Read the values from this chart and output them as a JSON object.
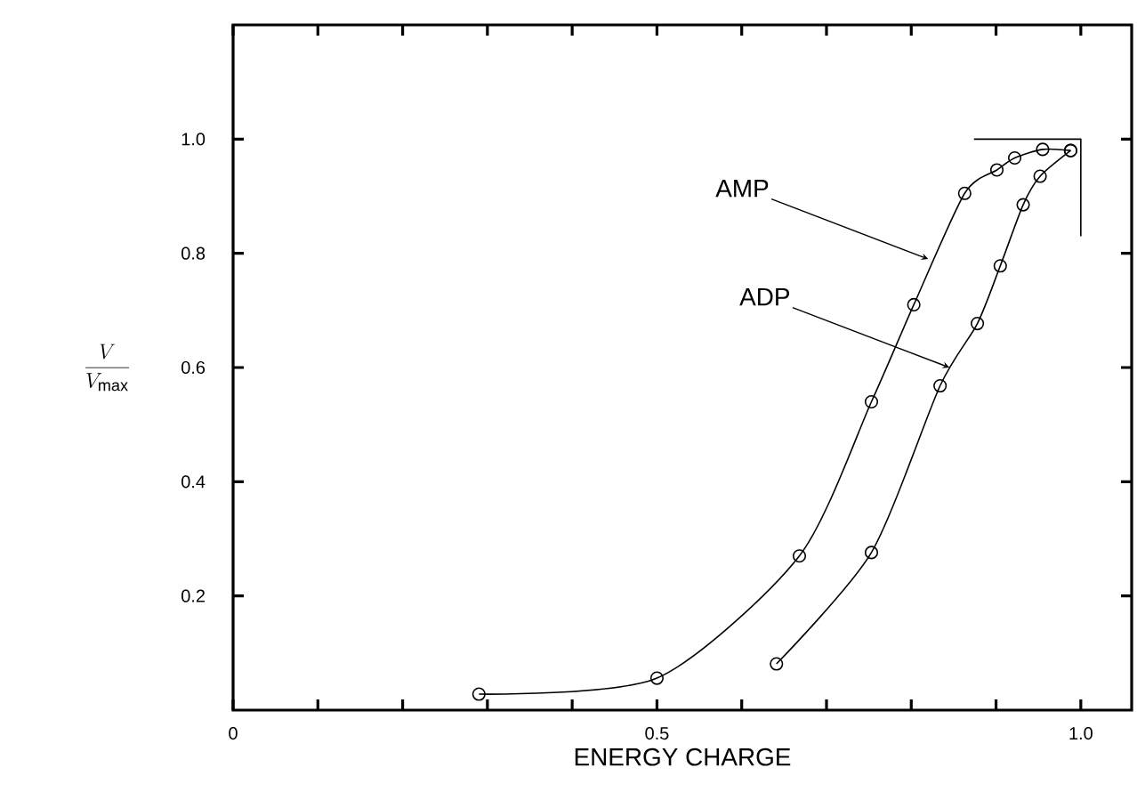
{
  "chart_data": {
    "type": "line",
    "xlabel": "ENERGY CHARGE",
    "ylabel": "\\frac{V}{V_{\\mathrm{max}}}",
    "xlim": [
      0,
      1.06
    ],
    "ylim": [
      0,
      1.2
    ],
    "xticks": [
      0,
      {
        "value": 0.1,
        "label": null
      },
      {
        "value": 0.2,
        "label": null
      },
      {
        "value": 0.3,
        "label": null
      },
      {
        "value": 0.4,
        "label": null
      },
      0.5,
      {
        "value": 0.6,
        "label": null
      },
      {
        "value": 0.7,
        "label": null
      },
      {
        "value": 0.8,
        "label": null
      },
      {
        "value": 0.9,
        "label": null
      },
      {
        "value": 1.0,
        "label": "1.0"
      }
    ],
    "yticks": [
      0.2,
      0.4,
      0.6,
      0.8,
      {
        "value": 1.0,
        "label": "1.0"
      }
    ],
    "marker": "circle",
    "line_style": "solid",
    "series": [
      {
        "color": "#000000",
        "x": [
          0.29,
          0.5,
          0.668,
          0.753,
          0.803,
          0.863,
          0.901,
          0.922,
          0.955,
          0.988
        ],
        "values": [
          0.028,
          0.056,
          0.27,
          0.54,
          0.71,
          0.905,
          0.946,
          0.967,
          0.982,
          0.98
        ]
      },
      {
        "color": "#000000",
        "x": [
          0.641,
          0.753,
          0.834,
          0.878,
          0.905,
          0.932,
          0.952,
          0.988
        ],
        "values": [
          0.081,
          0.276,
          0.568,
          0.677,
          0.778,
          0.885,
          0.935,
          0.98
        ]
      },
      {
        "color": "#000000",
        "marker": "none",
        "x": [
          0.874,
          1.0,
          1.0
        ],
        "values": [
          1.0,
          1.0,
          0.83
        ]
      }
    ],
    "annotations": [
      {
        "text": "AMP",
        "x": 0.82,
        "y": 0.79
      },
      {
        "text": "ADP",
        "x": 0.845,
        "y": 0.6
      }
    ]
  }
}
